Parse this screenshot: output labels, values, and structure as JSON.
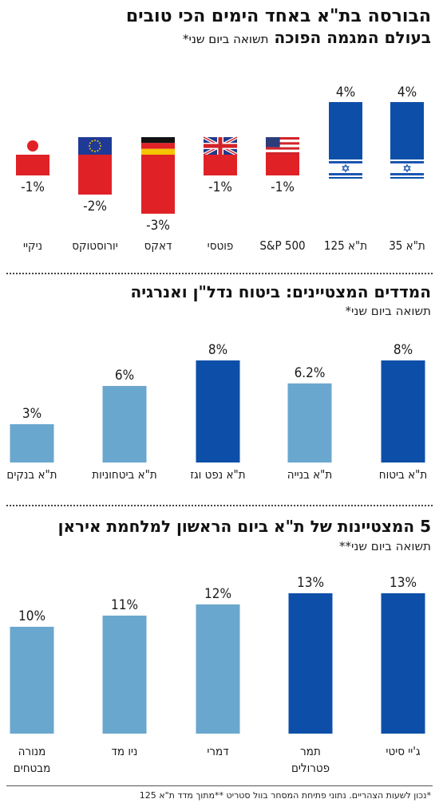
{
  "sections": [
    {
      "title_line1": "הבורסה בת\"א באחד הימים הכי טובים",
      "title_line2_bold": "בעולם המגמה הפוכה",
      "subtitle": "תשואה ביום שני*"
    },
    {
      "title": "המדדים המצטיינים: ביטוח נדל\"ן ואנרגיה",
      "subtitle": "תשואה ביום שני*"
    },
    {
      "title": "5 המצטיינות של ת\"א ביום הראשון למלחמת איראן",
      "subtitle": "תשואה ביום שני**"
    }
  ],
  "footnote": "*נכון לשעות הצהריים. נתוני פתיחת המסחר בוול סטריט **מתוך מדד ת\"א 125",
  "colors": {
    "dark_blue": "#0d4fa8",
    "light_blue": "#6aa7ce",
    "red": "#e02227"
  },
  "chart_data": [
    {
      "type": "bar",
      "categories": [
        "ת\"א 35",
        "ת\"א 125",
        "S&P 500",
        "פוטסי",
        "דאקס",
        "יורוסטוקס",
        "ניקיי"
      ],
      "values": [
        4,
        4,
        -1,
        -1,
        -3,
        -2,
        -1
      ],
      "value_labels": [
        "4%",
        "4%",
        "-1%",
        "-1%",
        "-3%",
        "-2%",
        "-1%"
      ],
      "flags": [
        "israel-flag-icon",
        "israel-flag-icon",
        "usa-flag-icon",
        "uk-flag-icon",
        "germany-flag-icon",
        "eu-flag-icon",
        "japan-flag-icon"
      ]
    },
    {
      "type": "bar",
      "categories": [
        "ת\"א ביטוח",
        "ת\"א בנייה",
        "ת\"א נפט וגז",
        "ת\"א ביטחוניות",
        "ת\"א בנקים"
      ],
      "values": [
        8,
        6.2,
        8,
        6,
        3
      ],
      "value_labels": [
        "8%",
        "6.2%",
        "8%",
        "6%",
        "3%"
      ],
      "colors": [
        "dark",
        "light",
        "dark",
        "light",
        "light"
      ]
    },
    {
      "type": "bar",
      "categories": [
        "ג'יי סיטי",
        "תמר\nפטרולים",
        "דמרי",
        "ניו מד",
        "מנורה\nמבטחים"
      ],
      "values": [
        13,
        13,
        12,
        11,
        10
      ],
      "value_labels": [
        "13%",
        "13%",
        "12%",
        "11%",
        "10%"
      ],
      "colors": [
        "dark",
        "dark",
        "light",
        "light",
        "light"
      ]
    }
  ]
}
